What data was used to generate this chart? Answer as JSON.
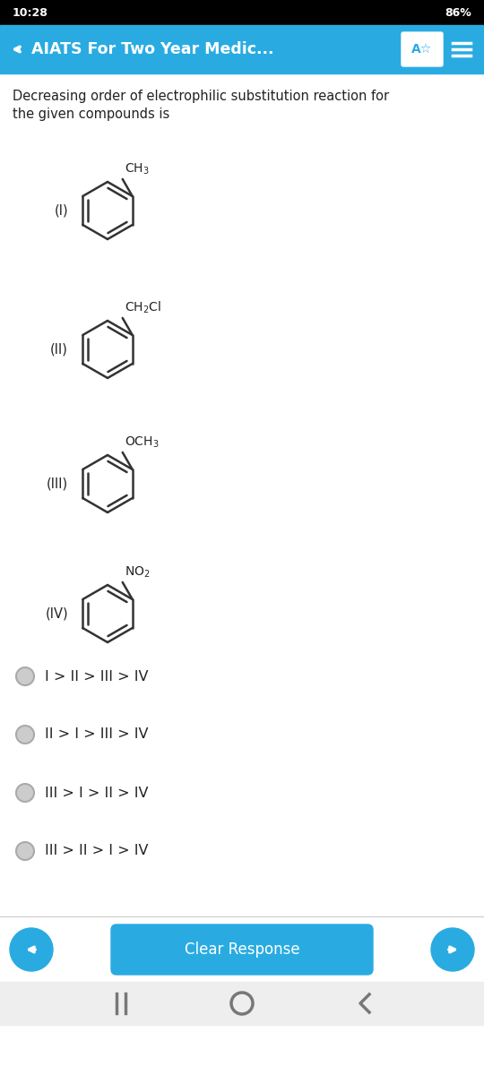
{
  "status_bar_bg": "#000000",
  "status_bar_text": "#ffffff",
  "status_time": "10:28",
  "status_right": "86%",
  "header_bg": "#29ABE2",
  "header_text": "AIATS For Two Year Medic...",
  "header_text_color": "#ffffff",
  "body_bg": "#ffffff",
  "body_text_color": "#222222",
  "question_text_line1": "Decreasing order of electrophilic substitution reaction for",
  "question_text_line2": "the given compounds is",
  "compounds": [
    {
      "label": "(I)",
      "group": "CH$_3$"
    },
    {
      "label": "(II)",
      "group": "CH$_2$Cl"
    },
    {
      "label": "(III)",
      "group": "OCH$_3$"
    },
    {
      "label": "(IV)",
      "group": "NO$_2$"
    }
  ],
  "options": [
    "I > II > III > IV",
    "II > I > III > IV",
    "III > I > II > IV",
    "III > II > I > IV"
  ],
  "radio_color": "#cccccc",
  "radio_border": "#aaaaaa",
  "button_bg": "#29ABE2",
  "button_text": "Clear Response",
  "button_text_color": "#ffffff",
  "nav_bar_bg": "#eeeeee",
  "nav_bar_icon_color": "#777777",
  "ring_color": "#333333",
  "ring_lw": 1.8,
  "ring_r": 32
}
